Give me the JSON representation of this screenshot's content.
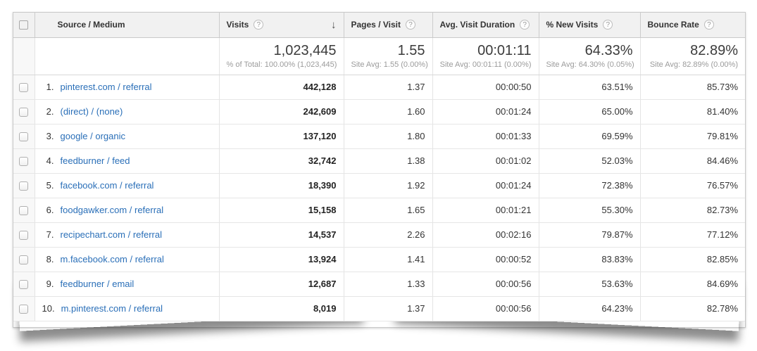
{
  "icons": {
    "help": "?",
    "sort_desc": "↓"
  },
  "table": {
    "columns": [
      {
        "label": "Source / Medium"
      },
      {
        "label": "Visits",
        "has_help": true,
        "sorted": "descending"
      },
      {
        "label": "Pages / Visit",
        "has_help": true
      },
      {
        "label": "Avg. Visit Duration",
        "has_help": true
      },
      {
        "label": "% New Visits",
        "has_help": true
      },
      {
        "label": "Bounce Rate",
        "has_help": true
      }
    ],
    "summary": {
      "visits": "1,023,445",
      "visits_sub": "% of Total: 100.00% (1,023,445)",
      "pages_visit": "1.55",
      "pages_visit_sub": "Site Avg: 1.55 (0.00%)",
      "avg_duration": "00:01:11",
      "avg_duration_sub": "Site Avg: 00:01:11 (0.00%)",
      "new_visits": "64.33%",
      "new_visits_sub": "Site Avg: 64.30% (0.05%)",
      "bounce_rate": "82.89%",
      "bounce_rate_sub": "Site Avg: 82.89% (0.00%)"
    },
    "rows": [
      {
        "rank": "1.",
        "source": "pinterest.com / referral",
        "visits": "442,128",
        "pages_visit": "1.37",
        "avg_duration": "00:00:50",
        "new_visits": "63.51%",
        "bounce_rate": "85.73%"
      },
      {
        "rank": "2.",
        "source": "(direct) / (none)",
        "visits": "242,609",
        "pages_visit": "1.60",
        "avg_duration": "00:01:24",
        "new_visits": "65.00%",
        "bounce_rate": "81.40%"
      },
      {
        "rank": "3.",
        "source": "google / organic",
        "visits": "137,120",
        "pages_visit": "1.80",
        "avg_duration": "00:01:33",
        "new_visits": "69.59%",
        "bounce_rate": "79.81%"
      },
      {
        "rank": "4.",
        "source": "feedburner / feed",
        "visits": "32,742",
        "pages_visit": "1.38",
        "avg_duration": "00:01:02",
        "new_visits": "52.03%",
        "bounce_rate": "84.46%"
      },
      {
        "rank": "5.",
        "source": "facebook.com / referral",
        "visits": "18,390",
        "pages_visit": "1.92",
        "avg_duration": "00:01:24",
        "new_visits": "72.38%",
        "bounce_rate": "76.57%"
      },
      {
        "rank": "6.",
        "source": "foodgawker.com / referral",
        "visits": "15,158",
        "pages_visit": "1.65",
        "avg_duration": "00:01:21",
        "new_visits": "55.30%",
        "bounce_rate": "82.73%"
      },
      {
        "rank": "7.",
        "source": "recipechart.com / referral",
        "visits": "14,537",
        "pages_visit": "2.26",
        "avg_duration": "00:02:16",
        "new_visits": "79.87%",
        "bounce_rate": "77.12%"
      },
      {
        "rank": "8.",
        "source": "m.facebook.com / referral",
        "visits": "13,924",
        "pages_visit": "1.41",
        "avg_duration": "00:00:52",
        "new_visits": "83.83%",
        "bounce_rate": "82.85%"
      },
      {
        "rank": "9.",
        "source": "feedburner / email",
        "visits": "12,687",
        "pages_visit": "1.33",
        "avg_duration": "00:00:56",
        "new_visits": "53.63%",
        "bounce_rate": "84.69%"
      },
      {
        "rank": "10.",
        "source": "m.pinterest.com / referral",
        "visits": "8,019",
        "pages_visit": "1.37",
        "avg_duration": "00:00:56",
        "new_visits": "64.23%",
        "bounce_rate": "82.78%"
      }
    ]
  }
}
